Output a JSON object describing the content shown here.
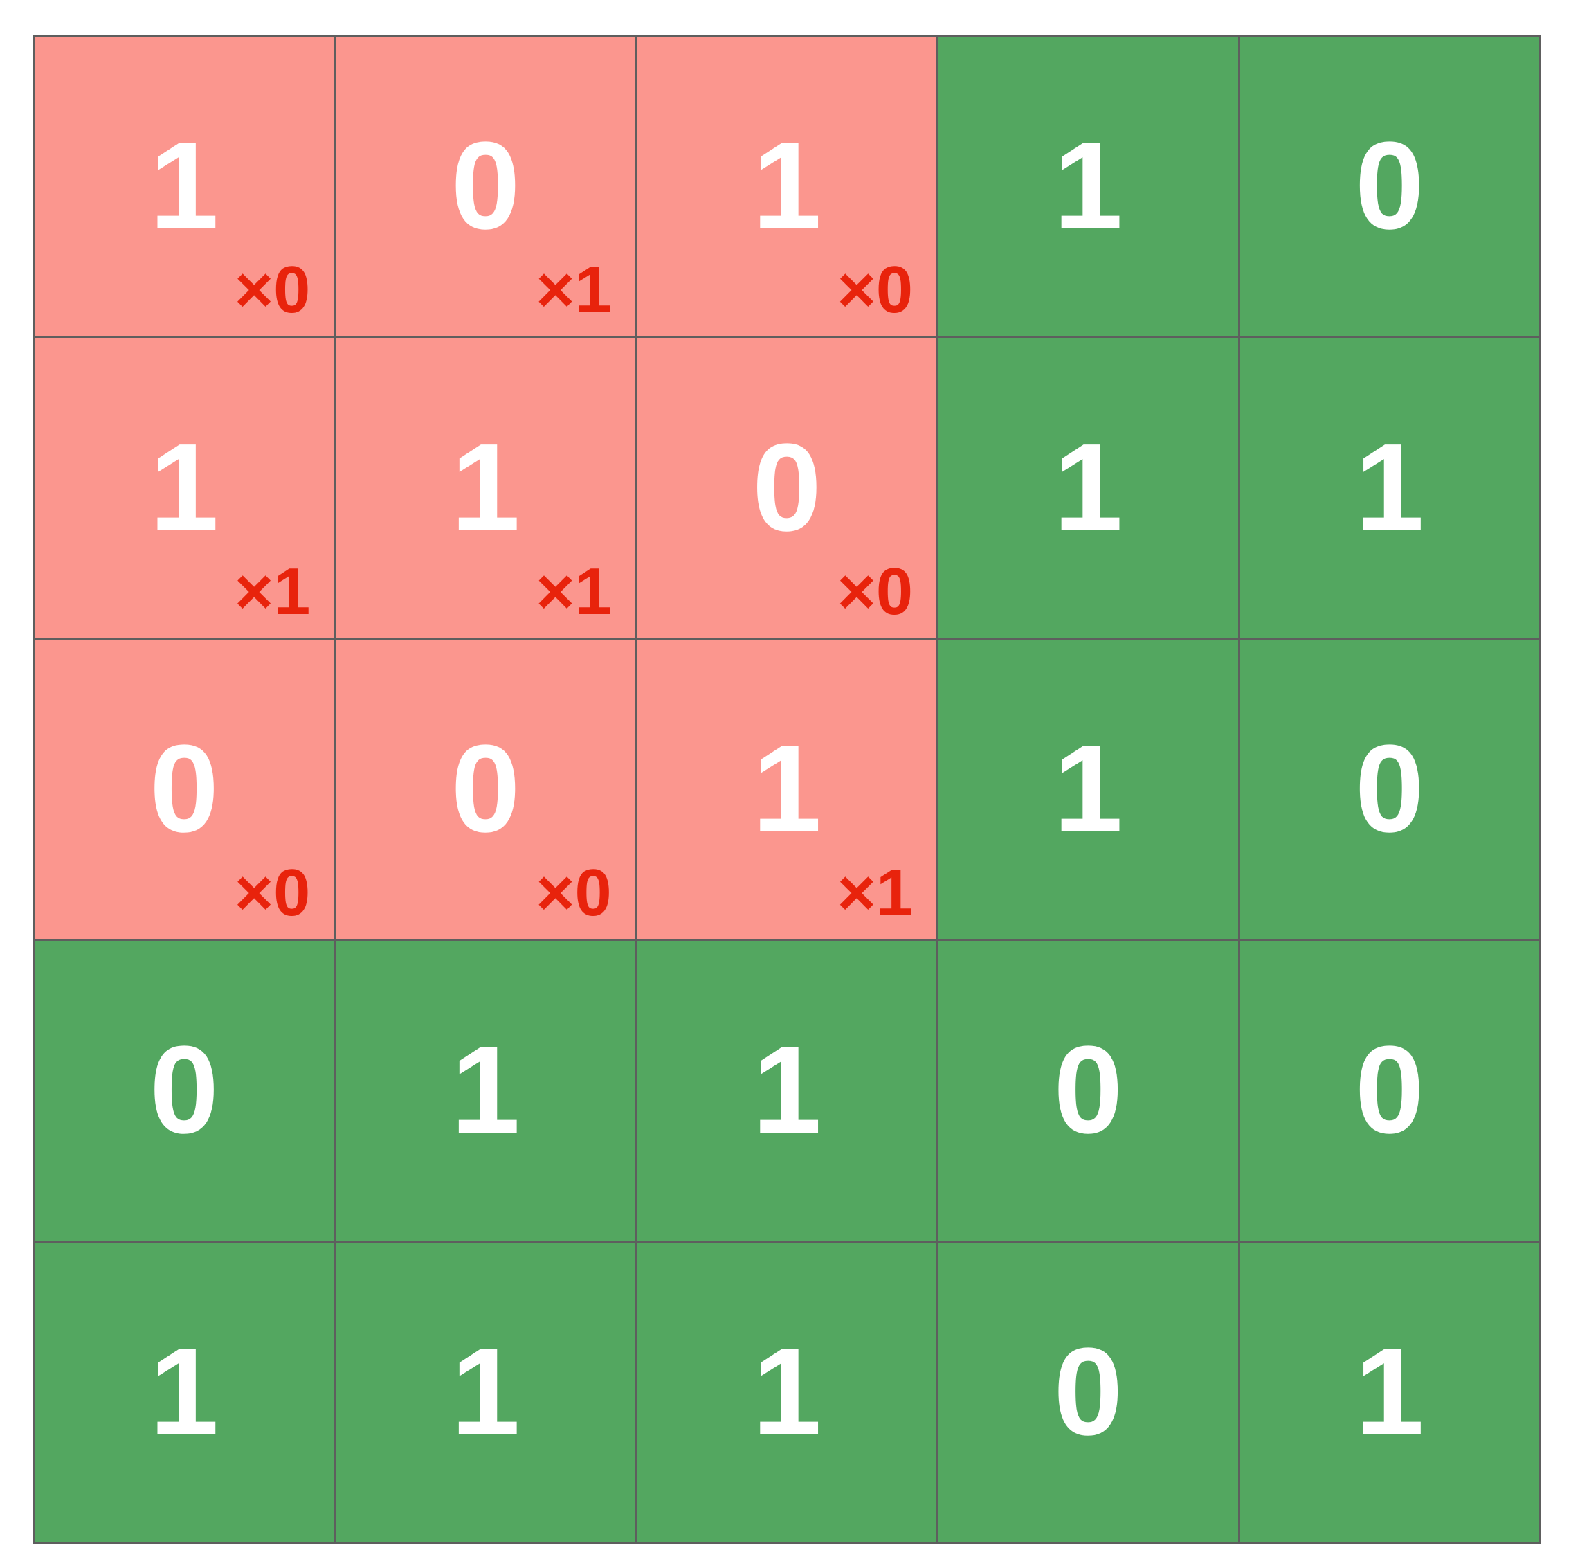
{
  "grid": {
    "rows": [
      [
        {
          "value": "1",
          "weight": "×0",
          "highlight": true
        },
        {
          "value": "0",
          "weight": "×1",
          "highlight": true
        },
        {
          "value": "1",
          "weight": "×0",
          "highlight": true
        },
        {
          "value": "1",
          "weight": "",
          "highlight": false
        },
        {
          "value": "0",
          "weight": "",
          "highlight": false
        }
      ],
      [
        {
          "value": "1",
          "weight": "×1",
          "highlight": true
        },
        {
          "value": "1",
          "weight": "×1",
          "highlight": true
        },
        {
          "value": "0",
          "weight": "×0",
          "highlight": true
        },
        {
          "value": "1",
          "weight": "",
          "highlight": false
        },
        {
          "value": "1",
          "weight": "",
          "highlight": false
        }
      ],
      [
        {
          "value": "0",
          "weight": "×0",
          "highlight": true
        },
        {
          "value": "0",
          "weight": "×0",
          "highlight": true
        },
        {
          "value": "1",
          "weight": "×1",
          "highlight": true
        },
        {
          "value": "1",
          "weight": "",
          "highlight": false
        },
        {
          "value": "0",
          "weight": "",
          "highlight": false
        }
      ],
      [
        {
          "value": "0",
          "weight": "",
          "highlight": false
        },
        {
          "value": "1",
          "weight": "",
          "highlight": false
        },
        {
          "value": "1",
          "weight": "",
          "highlight": false
        },
        {
          "value": "0",
          "weight": "",
          "highlight": false
        },
        {
          "value": "0",
          "weight": "",
          "highlight": false
        }
      ],
      [
        {
          "value": "1",
          "weight": "",
          "highlight": false
        },
        {
          "value": "1",
          "weight": "",
          "highlight": false
        },
        {
          "value": "1",
          "weight": "",
          "highlight": false
        },
        {
          "value": "0",
          "weight": "",
          "highlight": false
        },
        {
          "value": "1",
          "weight": "",
          "highlight": false
        }
      ]
    ]
  },
  "colors": {
    "cell_background": "#53a760",
    "kernel_background": "#fb968e",
    "value_text": "#ffffff",
    "weight_text": "#e8230c",
    "grid_lines": "#5e5e5e"
  }
}
